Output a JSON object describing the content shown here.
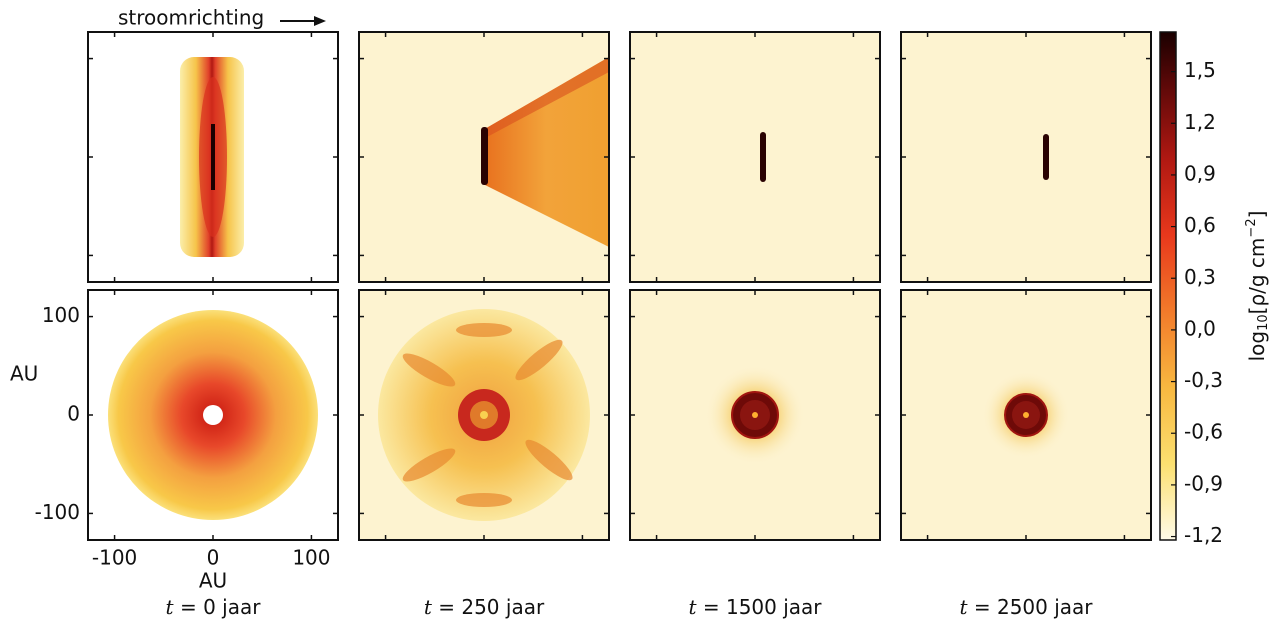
{
  "annotation": "stroomrichting",
  "x_axis": {
    "label": "AU",
    "lim": [
      -127,
      127
    ],
    "ticks": [
      -100,
      0,
      100
    ]
  },
  "y_axis": {
    "label": "AU",
    "lim": [
      -127,
      127
    ],
    "ticks": [
      100,
      0,
      -100
    ]
  },
  "time_symbol": "t",
  "panels": [
    {
      "caption": "= 0 jaar"
    },
    {
      "caption": "= 250 jaar"
    },
    {
      "caption": "= 1500 jaar"
    },
    {
      "caption": "= 2500 jaar"
    }
  ],
  "colorbar": {
    "label_parts": [
      "log",
      "10",
      "[ρ/g cm",
      "−2",
      "]"
    ],
    "lim": [
      -1.22,
      1.73
    ],
    "ticks": [
      {
        "value": 1.5,
        "label": "1,5"
      },
      {
        "value": 1.2,
        "label": "1,2"
      },
      {
        "value": 0.9,
        "label": "0,9"
      },
      {
        "value": 0.6,
        "label": "0,6"
      },
      {
        "value": 0.3,
        "label": "0,3"
      },
      {
        "value": 0.0,
        "label": "0,0"
      },
      {
        "value": -0.3,
        "label": "-0,3"
      },
      {
        "value": -0.6,
        "label": "-0,6"
      },
      {
        "value": -0.9,
        "label": "-0,9"
      },
      {
        "value": -1.2,
        "label": "-1,2"
      }
    ]
  }
}
